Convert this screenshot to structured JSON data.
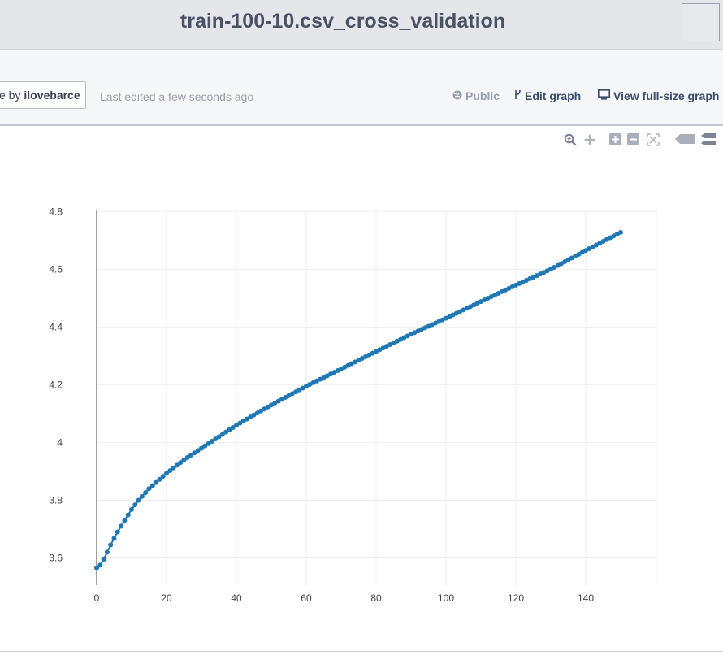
{
  "header": {
    "title": "train-100-10.csv_cross_validation"
  },
  "meta": {
    "author_prefix": "e by ",
    "author_name": "ilovebarce",
    "last_edited": "Last edited a few seconds ago",
    "public_label": "Public",
    "edit_label": "Edit graph",
    "fullsize_label": "View full-size graph"
  },
  "modebar": [
    "zoom-icon",
    "pan-icon",
    "zoom-in-icon",
    "zoom-out-icon",
    "autoscale-icon",
    "hover-closest-icon",
    "hover-compare-icon"
  ],
  "colors": {
    "series": "#1f77b4",
    "grid": "#eeeeee",
    "title": "#4a5164"
  },
  "chart_data": {
    "type": "scatter",
    "mode": "lines+markers",
    "title": "",
    "xlabel": "",
    "ylabel": "",
    "xlim": [
      0,
      150
    ],
    "ylim": [
      3.52,
      4.8
    ],
    "x_ticks": [
      0,
      20,
      40,
      60,
      80,
      100,
      120,
      140
    ],
    "y_ticks": [
      3.6,
      3.8,
      4,
      4.2,
      4.4,
      4.6,
      4.8
    ],
    "x_tick_labels": [
      "0",
      "20",
      "40",
      "60",
      "80",
      "100",
      "120",
      "140"
    ],
    "y_tick_labels": [
      "3.6",
      "3.8",
      "4",
      "4.2",
      "4.4",
      "4.6",
      "4.8"
    ],
    "grid": true,
    "series": [
      {
        "x_start": 0,
        "x_end": 150,
        "x_step": 1,
        "anchors": [
          [
            0,
            3.565
          ],
          [
            1,
            3.575
          ],
          [
            2,
            3.595
          ],
          [
            3,
            3.62
          ],
          [
            4,
            3.645
          ],
          [
            5,
            3.668
          ],
          [
            6,
            3.69
          ],
          [
            8,
            3.73
          ],
          [
            10,
            3.768
          ],
          [
            12,
            3.8
          ],
          [
            15,
            3.84
          ],
          [
            18,
            3.872
          ],
          [
            20,
            3.893
          ],
          [
            25,
            3.94
          ],
          [
            30,
            3.98
          ],
          [
            35,
            4.02
          ],
          [
            40,
            4.06
          ],
          [
            50,
            4.13
          ],
          [
            60,
            4.195
          ],
          [
            70,
            4.255
          ],
          [
            80,
            4.315
          ],
          [
            90,
            4.375
          ],
          [
            100,
            4.43
          ],
          [
            110,
            4.488
          ],
          [
            120,
            4.545
          ],
          [
            130,
            4.6
          ],
          [
            140,
            4.665
          ],
          [
            150,
            4.728
          ]
        ]
      }
    ]
  }
}
